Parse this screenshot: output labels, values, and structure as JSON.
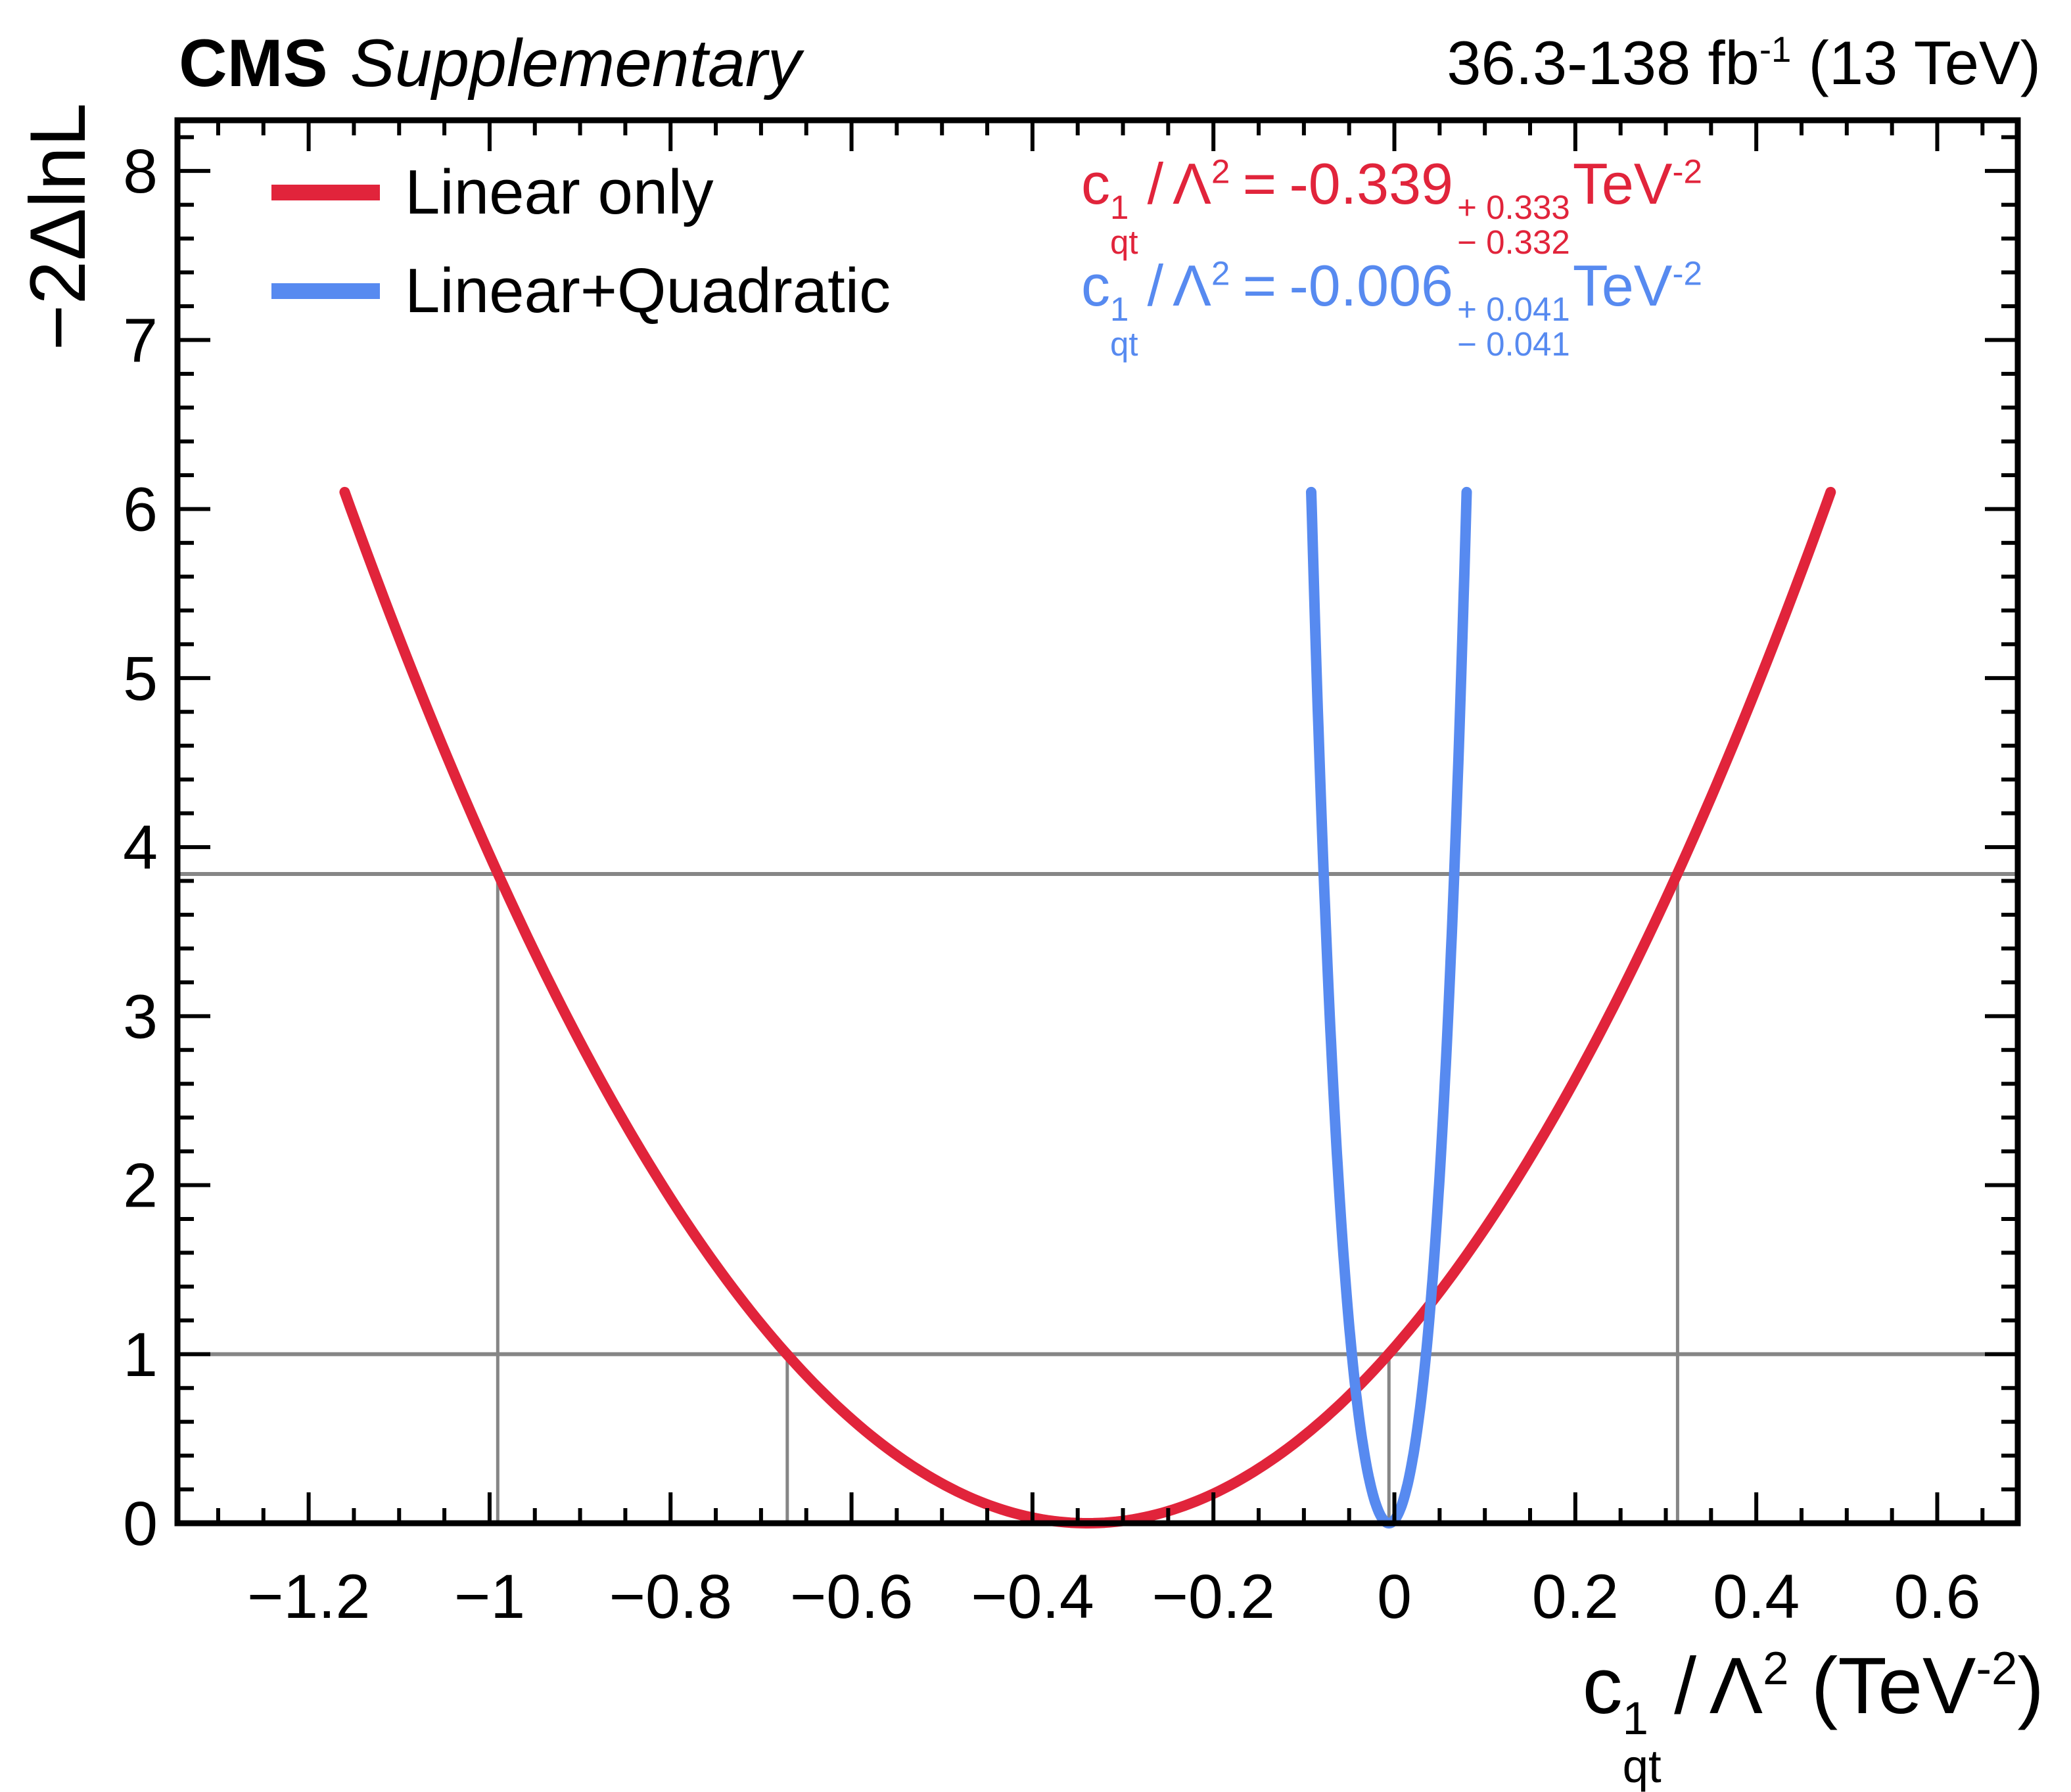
{
  "header": {
    "experiment": "CMS",
    "sublabel": "Supplementary",
    "lumi_main": "36.3-138 fb",
    "lumi_sup": "-1",
    "lumi_tail": " (13 TeV)"
  },
  "colors": {
    "linear_red": "#e1243b",
    "quadratic_blue": "#578af0",
    "reference_gray": "#868686",
    "frame_black": "#000000"
  },
  "legend": {
    "position": "top-left",
    "items": [
      {
        "label": "Linear only"
      },
      {
        "label": "Linear+Quadratic"
      }
    ]
  },
  "formula": {
    "c": "c",
    "c_sup": "1",
    "c_sub": "qt",
    "slash": "/",
    "lambda": "Λ",
    "lambda_sup": "2",
    "equals": "=",
    "tev": "TeV",
    "tev_sup": "-2"
  },
  "results": {
    "linear": {
      "value": "-0.339",
      "err_up": "+ 0.333",
      "err_dn": "− 0.332"
    },
    "linear_quadratic": {
      "value": "-0.006",
      "err_up": "+ 0.041",
      "err_dn": "− 0.041"
    }
  },
  "axes": {
    "y_title": "−2ΔlnL",
    "x_unit_open": "(TeV",
    "x_unit_sup": "-2",
    "x_unit_close": ")"
  },
  "chart_data": {
    "type": "line",
    "title": "",
    "xlabel": "c^1_qt / Λ^2 (TeV^-2)",
    "ylabel": "-2ΔlnL",
    "xlim": [
      -1.345,
      0.689
    ],
    "ylim": [
      0,
      8.3
    ],
    "grid": false,
    "legend_position": "top-left",
    "xminor_step": 0.05,
    "xmajor_step": 0.2,
    "yminor_step": 0.2,
    "ymajor_step": 1,
    "xticks": [
      {
        "v": -1.2,
        "label": "−1.2"
      },
      {
        "v": -1.0,
        "label": "−1"
      },
      {
        "v": -0.8,
        "label": "−0.8"
      },
      {
        "v": -0.6,
        "label": "−0.6"
      },
      {
        "v": -0.4,
        "label": "−0.4"
      },
      {
        "v": -0.2,
        "label": "−0.2"
      },
      {
        "v": 0.0,
        "label": "0"
      },
      {
        "v": 0.2,
        "label": "0.2"
      },
      {
        "v": 0.4,
        "label": "0.4"
      },
      {
        "v": 0.6,
        "label": "0.6"
      }
    ],
    "yticks": [
      {
        "v": 0,
        "label": "0"
      },
      {
        "v": 1,
        "label": "1"
      },
      {
        "v": 2,
        "label": "2"
      },
      {
        "v": 3,
        "label": "3"
      },
      {
        "v": 4,
        "label": "4"
      },
      {
        "v": 5,
        "label": "5"
      },
      {
        "v": 6,
        "label": "6"
      },
      {
        "v": 7,
        "label": "7"
      },
      {
        "v": 8,
        "label": "8"
      }
    ],
    "series": [
      {
        "name": "Linear only",
        "color": "#e1243b",
        "model": "parabola",
        "vertex_x": -0.339,
        "vertex_y": 0,
        "sigma": 0.3325,
        "best_fit": -0.339,
        "err_up": 0.333,
        "err_dn": 0.332,
        "crossing_1sigma": [
          -0.671,
          -0.006
        ],
        "crossing_95cl": [
          -0.991,
          0.313
        ],
        "draw_ymax": 6.1
      },
      {
        "name": "Linear+Quadratic",
        "color": "#578af0",
        "model": "quartic",
        "vertex_x": -0.006,
        "vertex_y": 0,
        "a2": 526.4,
        "a4": 40765,
        "best_fit": -0.006,
        "err_up": 0.041,
        "err_dn": 0.041,
        "draw_ymax": 6.1
      }
    ],
    "reference_lines": {
      "color": "#868686",
      "horizontal": [
        1,
        3.841
      ],
      "vertical": [
        {
          "x": -0.991,
          "to_y": 3.841
        },
        {
          "x": -0.671,
          "to_y": 1
        },
        {
          "x": -0.006,
          "to_y": 1
        },
        {
          "x": 0.313,
          "to_y": 3.841
        }
      ]
    }
  }
}
